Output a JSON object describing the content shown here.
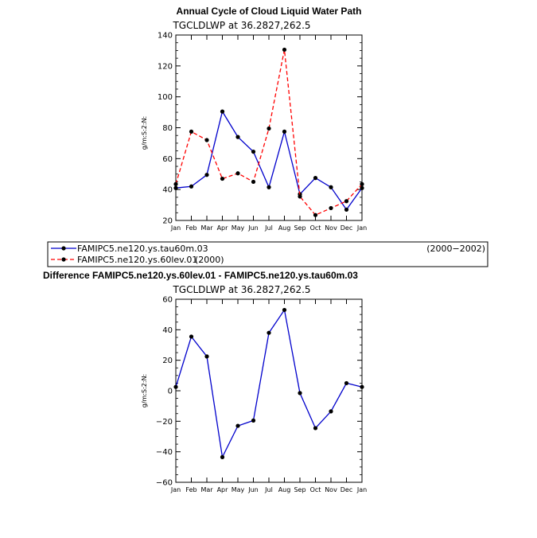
{
  "chart_data": [
    {
      "type": "line",
      "title": "Annual Cycle of Cloud Liquid Water Path",
      "subtitle": "TGCLDLWP  at  36.2827,262.5",
      "ylabel": "g/m:S:2:N:",
      "xlabel": "",
      "ylim": [
        20,
        140
      ],
      "yticks": [
        "20",
        "40",
        "60",
        "80",
        "100",
        "120",
        "140"
      ],
      "categories": [
        "Jan",
        "Feb",
        "Mar",
        "Apr",
        "May",
        "Jun",
        "Jul",
        "Aug",
        "Sep",
        "Oct",
        "Nov",
        "Dec",
        "Jan"
      ],
      "series": [
        {
          "name": "FAMIPC5.ne120.ys.tau60m.03",
          "period": "(2000−2002)",
          "color": "#0000cc",
          "dash": "solid",
          "values": [
            41,
            42,
            49.5,
            90.5,
            74,
            64.5,
            41.5,
            77.5,
            37,
            47.5,
            41.5,
            27,
            41
          ]
        },
        {
          "name": "FAMIPC5.ne120.ys.60lev.01",
          "period": "(2000)",
          "color": "#ff0000",
          "dash": "dashed",
          "values": [
            43.5,
            77.5,
            72,
            47,
            50.5,
            45,
            79.5,
            130.5,
            35.5,
            23.5,
            28,
            32.5,
            43.5
          ]
        }
      ],
      "legend": "below",
      "grid": false
    },
    {
      "type": "line",
      "title": "Difference FAMIPC5.ne120.ys.60lev.01 - FAMIPC5.ne120.ys.tau60m.03",
      "subtitle": "TGCLDLWP  at  36.2827,262.5",
      "ylabel": "g/m:S:2:N:",
      "xlabel": "",
      "ylim": [
        -60,
        60
      ],
      "yticks": [
        "−60",
        "−40",
        "−20",
        "0",
        "20",
        "40",
        "60"
      ],
      "categories": [
        "Jan",
        "Feb",
        "Mar",
        "Apr",
        "May",
        "Jun",
        "Jul",
        "Aug",
        "Sep",
        "Oct",
        "Nov",
        "Dec",
        "Jan"
      ],
      "series": [
        {
          "name": "",
          "color": "#0000cc",
          "dash": "solid",
          "values": [
            2.5,
            35.5,
            22.5,
            -43.5,
            -23,
            -19.5,
            38,
            53,
            -1.5,
            -24.5,
            -13.5,
            5,
            2.5
          ]
        }
      ],
      "grid": false
    }
  ]
}
